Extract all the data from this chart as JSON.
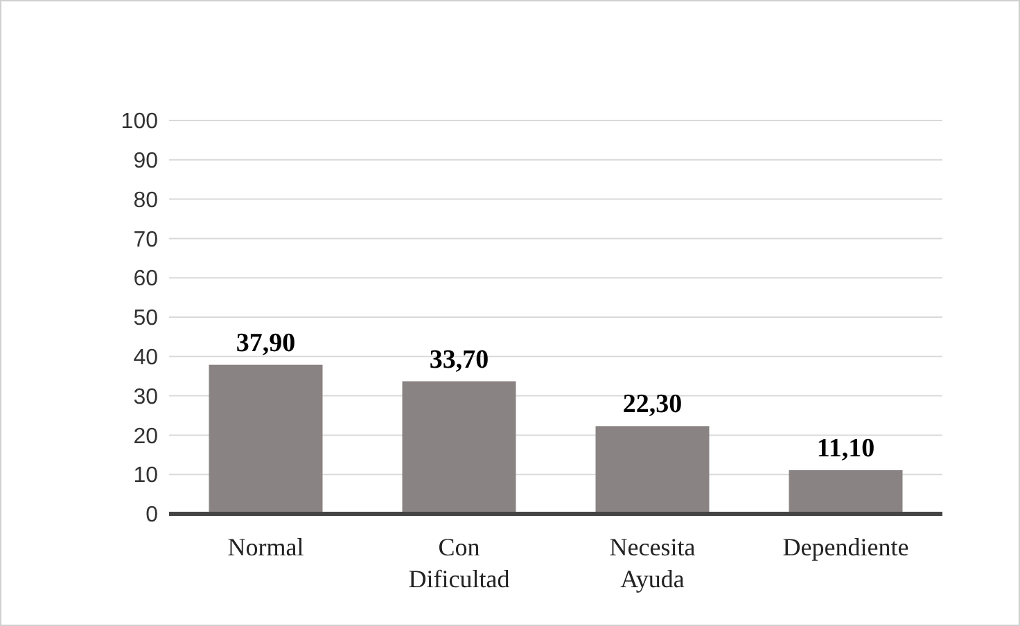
{
  "chart_data": {
    "type": "bar",
    "categories": [
      "Normal",
      "Con Dificultad",
      "Necesita Ayuda",
      "Dependiente"
    ],
    "values": [
      37.9,
      33.7,
      22.3,
      11.1
    ],
    "value_labels": [
      "37,90",
      "33,70",
      "22,30",
      "11,10"
    ],
    "color": "#8a8383",
    "ylim": [
      0,
      100
    ],
    "yticks": [
      0,
      10,
      20,
      30,
      40,
      50,
      60,
      70,
      80,
      90,
      100
    ],
    "grid": "y"
  }
}
